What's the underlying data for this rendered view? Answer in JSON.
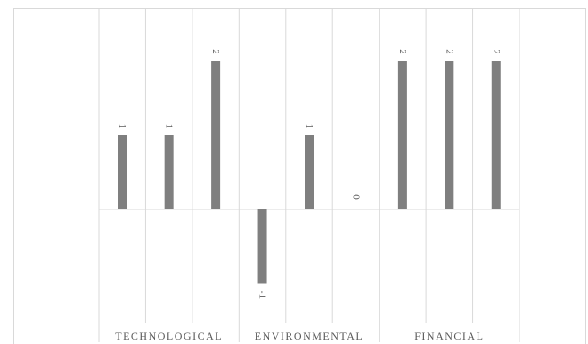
{
  "chart_data": {
    "type": "bar",
    "title": "",
    "xlabel": "",
    "ylabel": "",
    "groups": [
      {
        "label": "TECHNOLOGICAL",
        "start": 0,
        "count": 3
      },
      {
        "label": "ENVIRONMENTAL",
        "start": 3,
        "count": 3
      },
      {
        "label": "FINANCIAL",
        "start": 6,
        "count": 3
      }
    ],
    "values": [
      1,
      1,
      2,
      -1,
      1,
      0,
      2,
      2,
      2
    ],
    "data_labels": [
      "1",
      "1",
      "2",
      "-1",
      "1",
      "0",
      "2",
      "2",
      "2"
    ],
    "ylim": [
      -1,
      2
    ],
    "y_axis_visible": false,
    "grid": "vertical category separators",
    "legend": "none",
    "bar_color": "#7f7f7f",
    "gridline_color": "#d9d9d9",
    "label_color": "#595959"
  }
}
